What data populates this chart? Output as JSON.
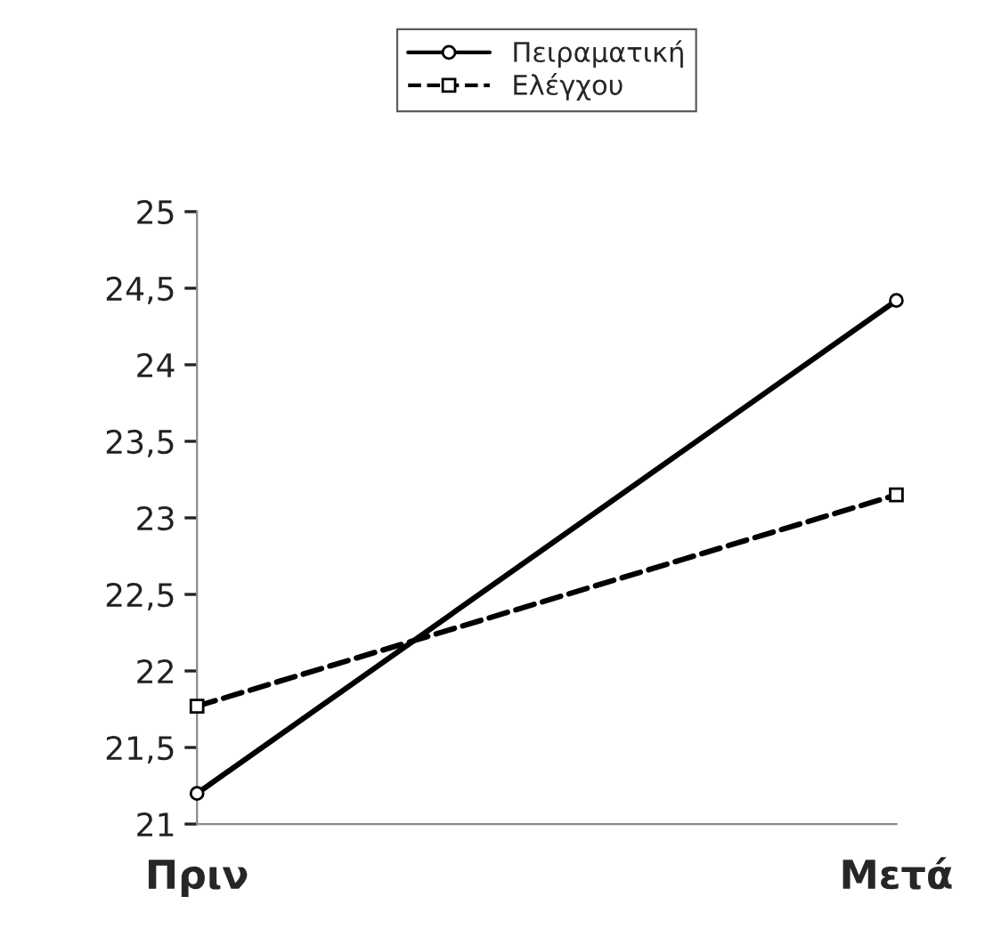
{
  "chart_data": {
    "type": "line",
    "categories": [
      "Πριν",
      "Μετά"
    ],
    "series": [
      {
        "name": "Πειραματική",
        "color": "#000000",
        "values": [
          21.2,
          24.42
        ],
        "line_style": "solid",
        "marker": "circle"
      },
      {
        "name": "Ελέγχου",
        "color": "#000000",
        "values": [
          21.77,
          23.15
        ],
        "line_style": "dashed",
        "marker": "square"
      }
    ],
    "ylim": [
      21,
      25
    ],
    "yticks": [
      21,
      {
        "value": 21.5,
        "label": "21,5"
      },
      22,
      {
        "value": 22.5,
        "label": "22,5"
      },
      23,
      {
        "value": 23.5,
        "label": "23,5"
      },
      24,
      {
        "value": 24.5,
        "label": "24,5"
      },
      25
    ],
    "grid": false,
    "legend": "top"
  }
}
